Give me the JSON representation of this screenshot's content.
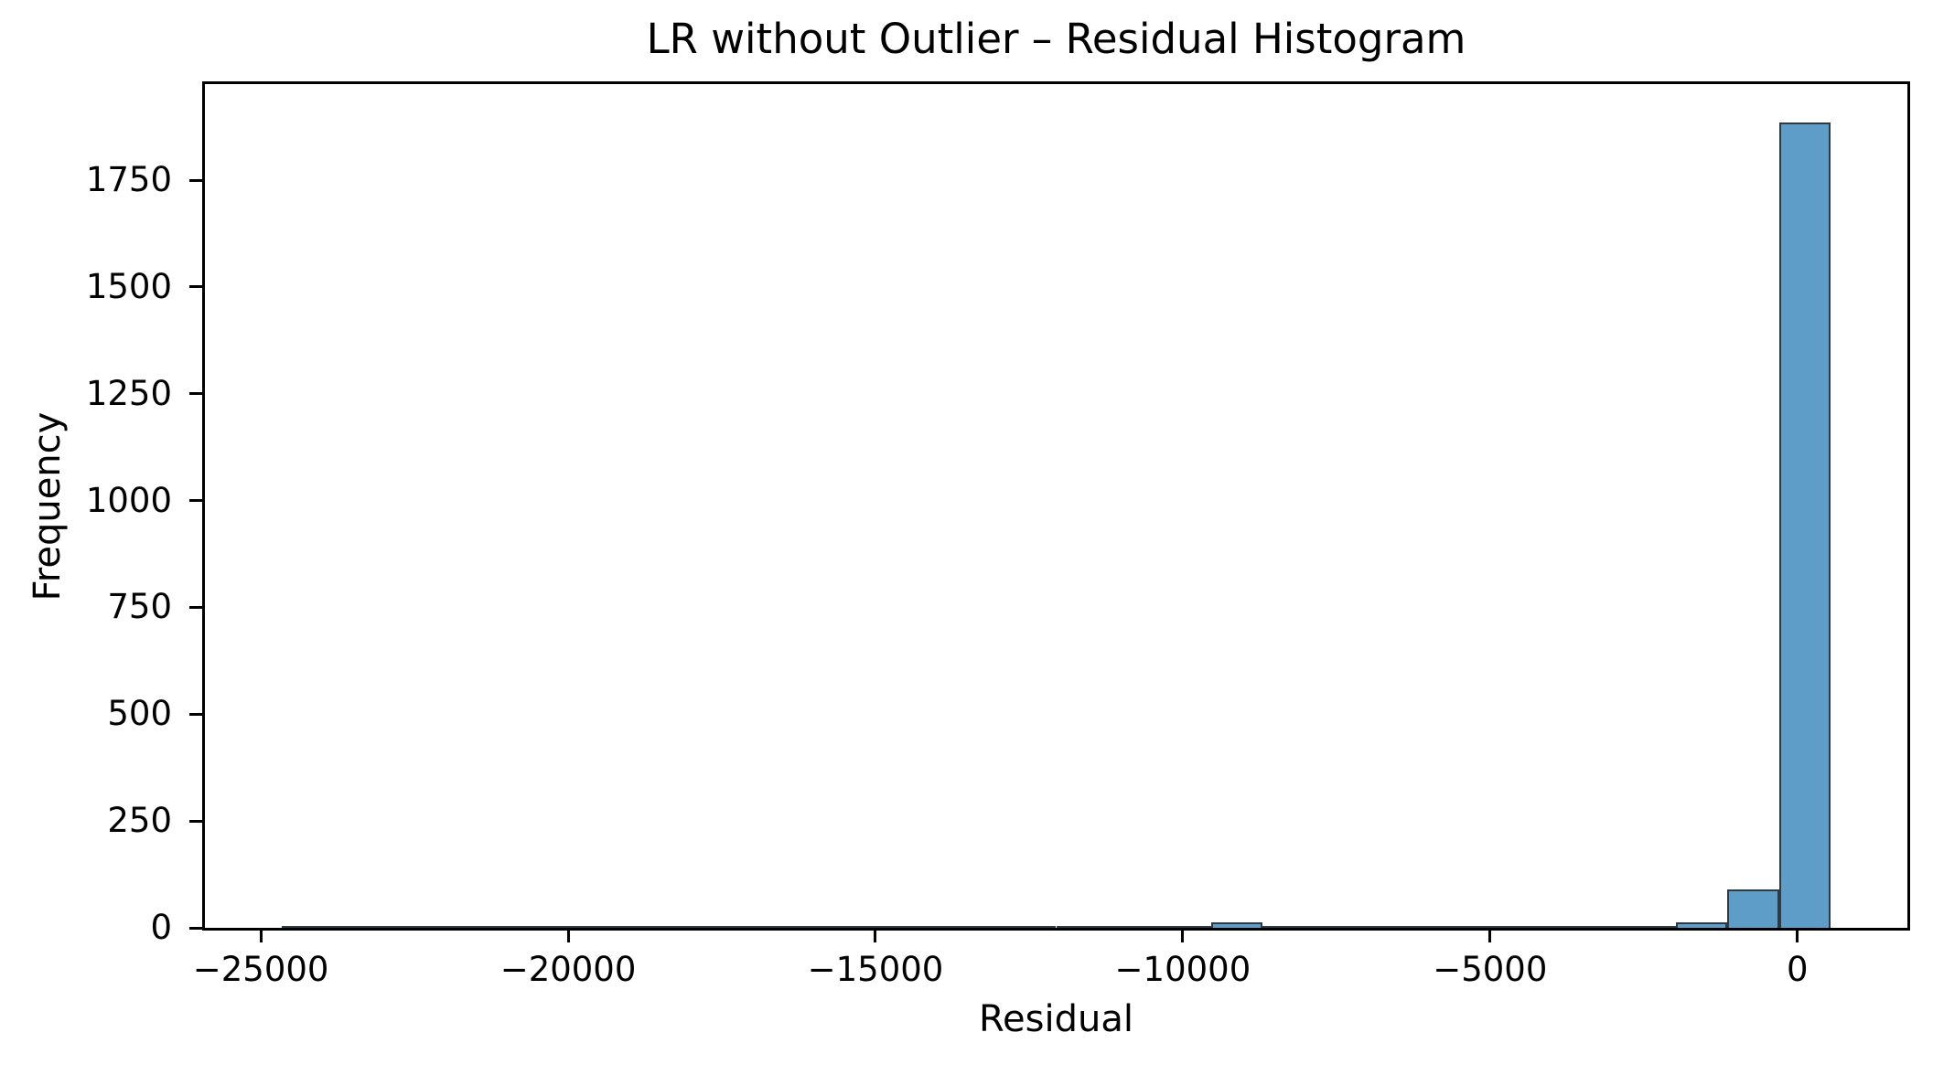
{
  "figure": {
    "title": "LR without Outlier – Residual Histogram",
    "xlabel": "Residual",
    "ylabel": "Frequency"
  },
  "colors": {
    "bar_fill": "#5f9dc9",
    "bar_edge": "#2f3a42",
    "axis": "#000000",
    "text": "#000000",
    "background": "#ffffff"
  },
  "chart_data": {
    "type": "bar",
    "subtype": "histogram",
    "title": "LR without Outlier – Residual Histogram",
    "xlabel": "Residual",
    "ylabel": "Frequency",
    "grid": false,
    "legend": null,
    "xlim": [
      -25910,
      1790
    ],
    "ylim": [
      0,
      1975
    ],
    "n_bins": 30,
    "bin_edges": [
      -24660,
      -23820,
      -22980,
      -22140,
      -21300,
      -20460,
      -19620,
      -18780,
      -17940,
      -17100,
      -16260,
      -15420,
      -14580,
      -13740,
      -12900,
      -12060,
      -11220,
      -10380,
      -9540,
      -8700,
      -7860,
      -7020,
      -6180,
      -5340,
      -4500,
      -3660,
      -2820,
      -1980,
      -1140,
      -300,
      540
    ],
    "counts": [
      1,
      1,
      1,
      1,
      1,
      1,
      1,
      1,
      1,
      1,
      1,
      1,
      1,
      1,
      1,
      1,
      1,
      1,
      12,
      1,
      1,
      1,
      1,
      1,
      4,
      1,
      5,
      12,
      90,
      1885
    ],
    "x_ticks": [
      {
        "value": -25000,
        "label": "−25000"
      },
      {
        "value": -20000,
        "label": "−20000"
      },
      {
        "value": -15000,
        "label": "−15000"
      },
      {
        "value": -10000,
        "label": "−10000"
      },
      {
        "value": -5000,
        "label": "−5000"
      },
      {
        "value": 0,
        "label": "0"
      }
    ],
    "y_ticks": [
      {
        "value": 0,
        "label": "0"
      },
      {
        "value": 250,
        "label": "250"
      },
      {
        "value": 500,
        "label": "500"
      },
      {
        "value": 750,
        "label": "750"
      },
      {
        "value": 1000,
        "label": "1000"
      },
      {
        "value": 1250,
        "label": "1250"
      },
      {
        "value": 1500,
        "label": "1500"
      },
      {
        "value": 1750,
        "label": "1750"
      }
    ]
  }
}
